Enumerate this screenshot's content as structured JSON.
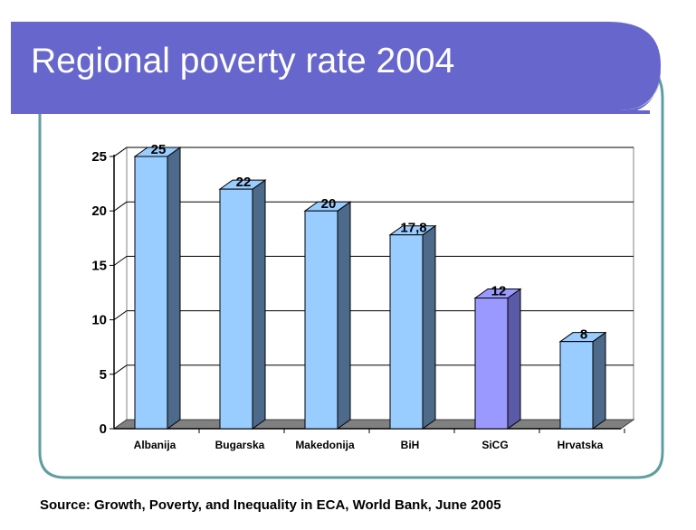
{
  "slide": {
    "title": "Regional poverty rate 2004",
    "source": "Source: Growth, Poverty, and Inequality in ECA, World Bank, June 2005"
  },
  "colors": {
    "title_bar": "#6666cc",
    "frame": "#5f9ea0",
    "bar_default": "#99ccff",
    "bar_highlight": "#9999ff",
    "bar_side": "#4d6a8a",
    "bar_side_highlight": "#5a5aa8"
  },
  "chart_data": {
    "type": "bar",
    "title": "",
    "xlabel": "",
    "ylabel": "",
    "categories": [
      "Albanija",
      "Bugarska",
      "Makedonija",
      "BiH",
      "SiCG",
      "Hrvatska"
    ],
    "values": [
      25,
      22,
      20,
      17.8,
      12,
      8
    ],
    "data_labels": [
      "25",
      "22",
      "20",
      "17,8",
      "12",
      "8"
    ],
    "highlight": [
      "SiCG"
    ],
    "yticks": [
      0,
      5,
      10,
      15,
      20,
      25
    ],
    "ylim": [
      0,
      25
    ],
    "grid": true,
    "legend": "none",
    "style": "3d-column"
  }
}
